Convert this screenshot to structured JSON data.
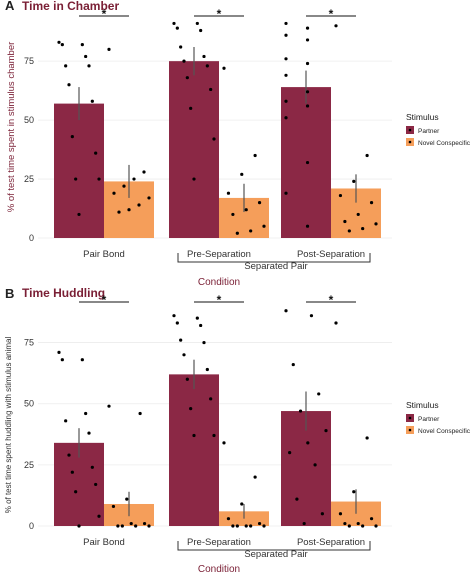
{
  "colors": {
    "partner": "#8b2845",
    "novel": "#f59e5a",
    "title": "#7a1f35"
  },
  "chart_data": [
    {
      "type": "bar",
      "panel_label": "A",
      "title": "Time in Chamber",
      "ylabel": "% of test time spent in stimulus chamber",
      "xlabel": "Condition",
      "ylim": [
        0,
        95
      ],
      "yticks": [
        "0",
        "25",
        "50",
        "75"
      ],
      "categories": [
        "Pair Bond",
        "Pre-Separation",
        "Post-Separation"
      ],
      "group_label": "Separated Pair",
      "significance": [
        "*",
        "*",
        "*"
      ],
      "legend": {
        "title": "Stimulus",
        "position": "right",
        "entries": [
          "Partner",
          "Novel Conspecific"
        ]
      },
      "series": [
        {
          "name": "Partner",
          "values": [
            57,
            75,
            64
          ],
          "errors": [
            7,
            6,
            7
          ],
          "points": [
            [
              83,
              82,
              82,
              77,
              73,
              73,
              65,
              58,
              43,
              36,
              25,
              25,
              10
            ],
            [
              91,
              91,
              89,
              88,
              81,
              77,
              75,
              73,
              68,
              63,
              55,
              42,
              25
            ],
            [
              91,
              89,
              86,
              84,
              76,
              74,
              69,
              62,
              58,
              56,
              51,
              32,
              19,
              5
            ]
          ]
        },
        {
          "name": "Novel Conspecific",
          "values": [
            24,
            17,
            21
          ],
          "errors": [
            7,
            6,
            6
          ],
          "points": [
            [
              80,
              28,
              25,
              22,
              19,
              17,
              14,
              12,
              11
            ],
            [
              72,
              35,
              27,
              19,
              15,
              12,
              10,
              5,
              3,
              2
            ],
            [
              90,
              35,
              24,
              18,
              15,
              10,
              7,
              6,
              4,
              3
            ]
          ]
        }
      ]
    },
    {
      "type": "bar",
      "panel_label": "B",
      "title": "Time Huddling",
      "ylabel": "% of test time spent huddling with stimulus animal",
      "xlabel": "Condition",
      "ylim": [
        0,
        92
      ],
      "yticks": [
        "0",
        "25",
        "50",
        "75"
      ],
      "categories": [
        "Pair Bond",
        "Pre-Separation",
        "Post-Separation"
      ],
      "group_label": "Separated Pair",
      "significance": [
        "*",
        "*",
        "*"
      ],
      "legend": {
        "title": "Stimulus",
        "position": "right",
        "entries": [
          "Partner",
          "Novel Conspecific"
        ]
      },
      "series": [
        {
          "name": "Partner",
          "values": [
            34,
            62,
            47
          ],
          "errors": [
            6,
            6,
            8
          ],
          "points": [
            [
              71,
              68,
              68,
              46,
              43,
              38,
              29,
              24,
              22,
              17,
              14,
              4,
              0
            ],
            [
              86,
              85,
              83,
              82,
              76,
              75,
              70,
              64,
              60,
              52,
              48,
              37,
              37
            ],
            [
              88,
              86,
              66,
              54,
              47,
              39,
              34,
              30,
              25,
              11,
              5,
              1
            ]
          ]
        },
        {
          "name": "Novel Conspecific",
          "values": [
            9,
            6,
            10
          ],
          "errors": [
            5,
            3,
            5
          ],
          "points": [
            [
              49,
              46,
              11,
              8,
              1,
              1,
              0,
              0,
              0,
              0
            ],
            [
              34,
              20,
              9,
              3,
              1,
              0,
              0,
              0,
              0,
              0
            ],
            [
              83,
              36,
              14,
              5,
              3,
              1,
              1,
              0,
              0,
              0
            ]
          ]
        }
      ]
    }
  ]
}
